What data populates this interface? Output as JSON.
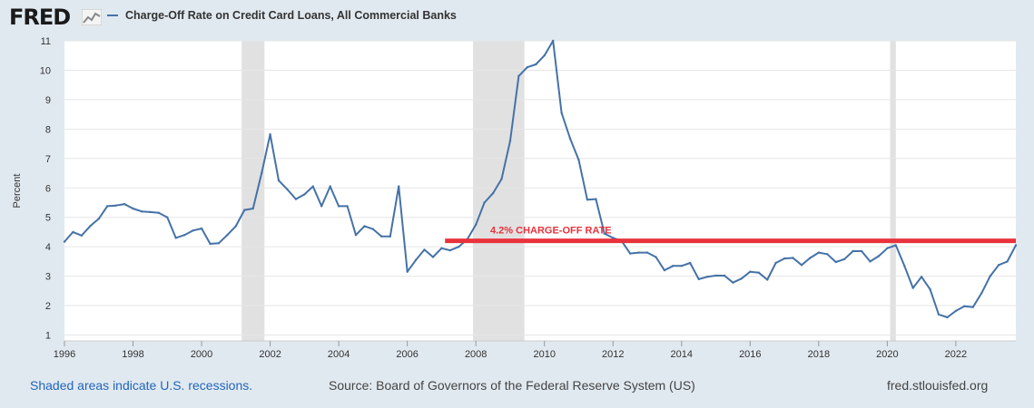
{
  "header": {
    "logo_text": "FRED",
    "logo_icon": "fred-chart-icon"
  },
  "footer": {
    "recessions_note": "Shaded areas indicate U.S. recessions.",
    "source": "Source: Board of Governors of the Federal Reserve System (US)",
    "site": "fred.stlouisfed.org"
  },
  "colors": {
    "background": "#e1e9f0",
    "plot_background": "#ffffff",
    "series": "#4572a7",
    "recession": "#e1e1e1",
    "annotation": "#e8323c",
    "link": "#2266bb"
  },
  "chart_data": {
    "type": "line",
    "title": "",
    "xlabel": "",
    "ylabel": "Percent",
    "xlim": [
      1996.0,
      2023.75
    ],
    "ylim": [
      0.8,
      11.0
    ],
    "y_ticks": [
      1,
      2,
      3,
      4,
      5,
      6,
      7,
      8,
      9,
      10,
      11
    ],
    "x_ticks": [
      "1996",
      "1998",
      "2000",
      "2002",
      "2004",
      "2006",
      "2008",
      "2010",
      "2012",
      "2014",
      "2016",
      "2018",
      "2020",
      "2022"
    ],
    "grid": "horizontal",
    "legend_position": "top-left",
    "series": [
      {
        "name": "Charge-Off Rate on Credit Card Loans, All Commercial Banks",
        "x": [
          1996.0,
          1996.25,
          1996.5,
          1996.75,
          1997.0,
          1997.25,
          1997.5,
          1997.75,
          1998.0,
          1998.25,
          1998.5,
          1998.75,
          1999.0,
          1999.25,
          1999.5,
          1999.75,
          2000.0,
          2000.25,
          2000.5,
          2000.75,
          2001.0,
          2001.25,
          2001.5,
          2001.75,
          2002.0,
          2002.25,
          2002.5,
          2002.75,
          2003.0,
          2003.25,
          2003.5,
          2003.75,
          2004.0,
          2004.25,
          2004.5,
          2004.75,
          2005.0,
          2005.25,
          2005.5,
          2005.75,
          2006.0,
          2006.25,
          2006.5,
          2006.75,
          2007.0,
          2007.25,
          2007.5,
          2007.75,
          2008.0,
          2008.25,
          2008.5,
          2008.75,
          2009.0,
          2009.25,
          2009.5,
          2009.75,
          2010.0,
          2010.25,
          2010.5,
          2010.75,
          2011.0,
          2011.25,
          2011.5,
          2011.75,
          2012.0,
          2012.25,
          2012.5,
          2012.75,
          2013.0,
          2013.25,
          2013.5,
          2013.75,
          2014.0,
          2014.25,
          2014.5,
          2014.75,
          2015.0,
          2015.25,
          2015.5,
          2015.75,
          2016.0,
          2016.25,
          2016.5,
          2016.75,
          2017.0,
          2017.25,
          2017.5,
          2017.75,
          2018.0,
          2018.25,
          2018.5,
          2018.75,
          2019.0,
          2019.25,
          2019.5,
          2019.75,
          2020.0,
          2020.25,
          2020.5,
          2020.75,
          2021.0,
          2021.25,
          2021.5,
          2021.75,
          2022.0,
          2022.25,
          2022.5,
          2022.75,
          2023.0,
          2023.25,
          2023.5,
          2023.75
        ],
        "values": [
          4.17,
          4.5,
          4.38,
          4.7,
          4.95,
          5.38,
          5.4,
          5.45,
          5.3,
          5.2,
          5.18,
          5.15,
          5.0,
          4.3,
          4.4,
          4.55,
          4.62,
          4.1,
          4.12,
          4.4,
          4.7,
          5.25,
          5.3,
          6.5,
          7.82,
          6.25,
          5.95,
          5.62,
          5.78,
          6.05,
          5.38,
          6.05,
          5.38,
          5.38,
          4.4,
          4.7,
          4.6,
          4.35,
          4.35,
          6.05,
          3.15,
          3.55,
          3.9,
          3.65,
          3.95,
          3.88,
          4.0,
          4.25,
          4.75,
          5.5,
          5.82,
          6.3,
          7.6,
          9.8,
          10.1,
          10.2,
          10.5,
          11.0,
          8.55,
          7.68,
          6.95,
          5.6,
          5.62,
          4.45,
          4.3,
          4.2,
          3.77,
          3.8,
          3.8,
          3.65,
          3.2,
          3.35,
          3.35,
          3.45,
          2.9,
          2.98,
          3.02,
          3.02,
          2.78,
          2.92,
          3.15,
          3.12,
          2.88,
          3.45,
          3.6,
          3.62,
          3.38,
          3.62,
          3.8,
          3.75,
          3.48,
          3.58,
          3.85,
          3.85,
          3.5,
          3.68,
          3.95,
          4.05,
          3.35,
          2.6,
          2.98,
          2.55,
          1.7,
          1.6,
          1.82,
          1.98,
          1.95,
          2.42,
          3.0,
          3.38,
          3.5,
          4.05
        ]
      }
    ],
    "recessions": [
      [
        2001.167,
        2001.833
      ],
      [
        2007.917,
        2009.417
      ],
      [
        2020.083,
        2020.25
      ]
    ],
    "annotation": {
      "text": "4.2% CHARGE-OFF RATE",
      "y": 4.2,
      "x_start": 2007.1,
      "x_end": 2023.75
    }
  }
}
